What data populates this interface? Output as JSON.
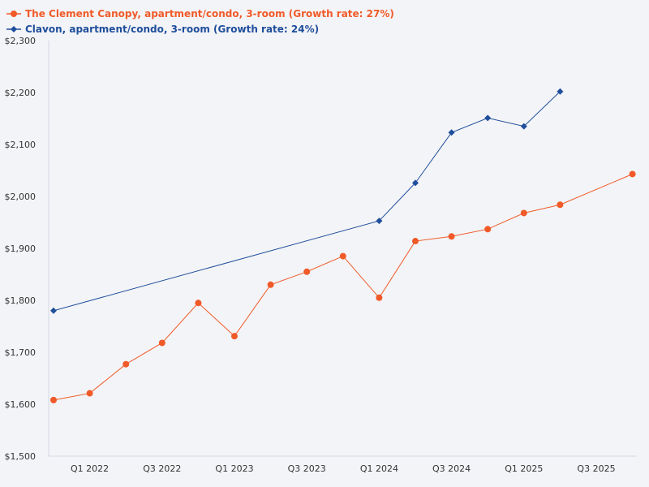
{
  "chart_data": {
    "type": "line",
    "title": "",
    "xlabel": "",
    "ylabel": "",
    "ylim": [
      1500,
      2300
    ],
    "yticks": [
      1500,
      1600,
      1700,
      1800,
      1900,
      2000,
      2100,
      2200,
      2300
    ],
    "ytick_labels": [
      "$1,500",
      "$1,600",
      "$1,700",
      "$1,800",
      "$1,900",
      "$2,000",
      "$2,100",
      "$2,200",
      "$2,300"
    ],
    "x_domain": [
      0,
      16
    ],
    "xticks": [
      1,
      3,
      5,
      7,
      9,
      11,
      13,
      15
    ],
    "xtick_labels": [
      "Q1 2022",
      "Q3 2022",
      "Q1 2023",
      "Q3 2023",
      "Q1 2024",
      "Q3 2024",
      "Q1 2025",
      "Q3 2025"
    ],
    "legend_position": "top-left",
    "series": [
      {
        "name": "The Clement Canopy, apartment/condo, 3-room (Growth rate: 27%)",
        "color": "#f05a28",
        "marker": "circle",
        "x": [
          0,
          1,
          2,
          3,
          4,
          5,
          6,
          7,
          8,
          9,
          10,
          11,
          12,
          13,
          14,
          16
        ],
        "values": [
          1608,
          1621,
          1677,
          1718,
          1795,
          1731,
          1830,
          1855,
          1885,
          1805,
          1914,
          1923,
          1937,
          1968,
          1984,
          2043
        ]
      },
      {
        "name": "Clavon, apartment/condo, 3-room (Growth rate: 24%)",
        "color": "#1f4e9c",
        "marker": "diamond",
        "x": [
          0,
          9,
          10,
          11,
          12,
          13,
          14
        ],
        "values": [
          1780,
          1953,
          2026,
          2123,
          2151,
          2135,
          2202
        ]
      }
    ]
  }
}
